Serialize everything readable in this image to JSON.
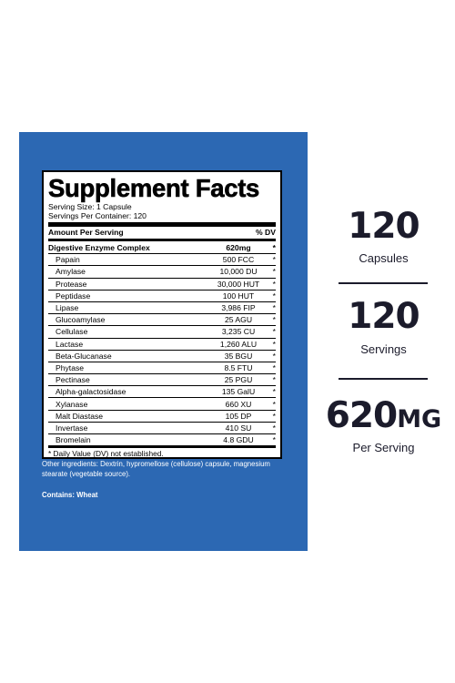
{
  "label": {
    "title": "Supplement Facts",
    "serving_size": "Serving Size: 1 Capsule",
    "servings_per_container": "Servings Per Container: 120",
    "header_left": "Amount Per Serving",
    "header_right": "% DV",
    "main_row": {
      "name": "Digestive Enzyme Complex",
      "amount": "620mg",
      "dv": "*"
    },
    "rows": [
      {
        "name": "Papain",
        "amount": "500 FCC",
        "dv": "*"
      },
      {
        "name": "Amylase",
        "amount": "10,000 DU",
        "dv": "*"
      },
      {
        "name": "Protease",
        "amount": "30,000 HUT",
        "dv": "*"
      },
      {
        "name": "Peptidase",
        "amount": "100 HUT",
        "dv": "*"
      },
      {
        "name": "Lipase",
        "amount": "3,986 FIP",
        "dv": "*"
      },
      {
        "name": "Glucoamylase",
        "amount": "25 AGU",
        "dv": "*"
      },
      {
        "name": "Cellulase",
        "amount": "3,235 CU",
        "dv": "*"
      },
      {
        "name": "Lactase",
        "amount": "1,260 ALU",
        "dv": "*"
      },
      {
        "name": "Beta-Glucanase",
        "amount": "35 BGU",
        "dv": "*"
      },
      {
        "name": "Phytase",
        "amount": "8.5 FTU",
        "dv": "*"
      },
      {
        "name": "Pectinase",
        "amount": "25 PGU",
        "dv": "*"
      },
      {
        "name": "Alpha-galactosidase",
        "amount": "135 GalU",
        "dv": "*"
      },
      {
        "name": "Xylanase",
        "amount": "660 XU",
        "dv": "*"
      },
      {
        "name": "Malt Diastase",
        "amount": "105 DP",
        "dv": "*"
      },
      {
        "name": "Invertase",
        "amount": "410 SU",
        "dv": "*"
      },
      {
        "name": "Bromelain",
        "amount": "4.8 GDU",
        "dv": "*"
      }
    ],
    "footnote": "* Daily Value (DV) not established.",
    "other_ingredients": "Other ingredients: Dextrin, hypromellose (cellulose) capsule, magnesium stearate (vegetable source).",
    "contains": "Contains: Wheat"
  },
  "stats": [
    {
      "value": "120",
      "unit": "",
      "label": "Capsules"
    },
    {
      "value": "120",
      "unit": "",
      "label": "Servings"
    },
    {
      "value": "620",
      "unit": "MG",
      "label": "Per Serving"
    }
  ],
  "colors": {
    "panel": "#2c68b3",
    "text_dark": "#1b1b2b"
  }
}
